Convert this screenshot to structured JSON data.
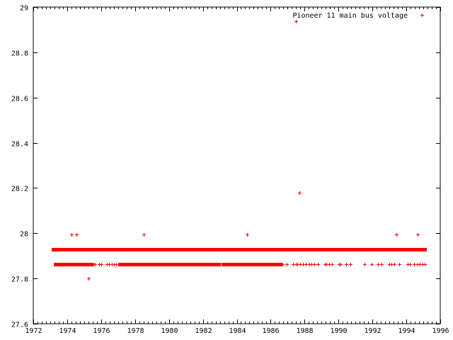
{
  "chart_data": {
    "type": "scatter",
    "title": "",
    "xlabel": "",
    "ylabel": "",
    "xlim": [
      1972,
      1996
    ],
    "ylim": [
      27.6,
      29
    ],
    "xticks": [
      "1972",
      "1974",
      "1976",
      "1978",
      "1980",
      "1982",
      "1984",
      "1986",
      "1988",
      "1990",
      "1992",
      "1994",
      "1996"
    ],
    "yticks": [
      "27.6",
      "27.8",
      "28",
      "28.2",
      "28.4",
      "28.6",
      "28.8",
      "29"
    ],
    "grid": false,
    "legend_position": "top-right",
    "series": [
      {
        "name": "Pioneer 11 main bus voltage",
        "color": "#ff0000",
        "marker": "plus",
        "dense_ranges": [
          {
            "y": 27.929,
            "x": [
              [
                1973.17,
                1980.9
              ],
              [
                1981.0,
                1982.95
              ],
              [
                1983.1,
                1995.12
              ]
            ]
          },
          {
            "y": 27.864,
            "x": [
              [
                1973.3,
                1975.5
              ],
              [
                1977.1,
                1979.75
              ],
              [
                1979.8,
                1980.9
              ],
              [
                1981.0,
                1983.0
              ],
              [
                1983.2,
                1986.6
              ]
            ]
          }
        ],
        "points": [
          {
            "x": 1974.25,
            "y": 27.994
          },
          {
            "x": 1974.55,
            "y": 27.994
          },
          {
            "x": 1978.51,
            "y": 27.994
          },
          {
            "x": 1984.6,
            "y": 27.994
          },
          {
            "x": 1993.41,
            "y": 27.994
          },
          {
            "x": 1994.66,
            "y": 27.994
          },
          {
            "x": 1975.26,
            "y": 27.799
          },
          {
            "x": 1987.69,
            "y": 28.179
          },
          {
            "x": 1987.48,
            "y": 28.937
          },
          {
            "x": 1975.63,
            "y": 27.864
          },
          {
            "x": 1975.88,
            "y": 27.864
          },
          {
            "x": 1976.01,
            "y": 27.864
          },
          {
            "x": 1976.34,
            "y": 27.864
          },
          {
            "x": 1976.47,
            "y": 27.864
          },
          {
            "x": 1976.63,
            "y": 27.864
          },
          {
            "x": 1976.76,
            "y": 27.864
          },
          {
            "x": 1976.88,
            "y": 27.864
          },
          {
            "x": 1977.05,
            "y": 27.864
          },
          {
            "x": 1986.69,
            "y": 27.864
          },
          {
            "x": 1986.94,
            "y": 27.864
          },
          {
            "x": 1987.32,
            "y": 27.864
          },
          {
            "x": 1987.48,
            "y": 27.864
          },
          {
            "x": 1987.57,
            "y": 27.864
          },
          {
            "x": 1987.73,
            "y": 27.864
          },
          {
            "x": 1987.9,
            "y": 27.864
          },
          {
            "x": 1988.07,
            "y": 27.864
          },
          {
            "x": 1988.28,
            "y": 27.864
          },
          {
            "x": 1988.4,
            "y": 27.864
          },
          {
            "x": 1988.57,
            "y": 27.864
          },
          {
            "x": 1988.78,
            "y": 27.864
          },
          {
            "x": 1989.2,
            "y": 27.864
          },
          {
            "x": 1989.28,
            "y": 27.864
          },
          {
            "x": 1989.45,
            "y": 27.864
          },
          {
            "x": 1989.61,
            "y": 27.864
          },
          {
            "x": 1990.03,
            "y": 27.864
          },
          {
            "x": 1990.11,
            "y": 27.864
          },
          {
            "x": 1990.45,
            "y": 27.864
          },
          {
            "x": 1990.7,
            "y": 27.864
          },
          {
            "x": 1991.53,
            "y": 27.864
          },
          {
            "x": 1991.95,
            "y": 27.864
          },
          {
            "x": 1992.33,
            "y": 27.864
          },
          {
            "x": 1992.53,
            "y": 27.864
          },
          {
            "x": 1992.99,
            "y": 27.864
          },
          {
            "x": 1993.12,
            "y": 27.864
          },
          {
            "x": 1993.29,
            "y": 27.864
          },
          {
            "x": 1993.58,
            "y": 27.864
          },
          {
            "x": 1994.08,
            "y": 27.864
          },
          {
            "x": 1994.2,
            "y": 27.864
          },
          {
            "x": 1994.45,
            "y": 27.864
          },
          {
            "x": 1994.66,
            "y": 27.864
          },
          {
            "x": 1994.79,
            "y": 27.864
          },
          {
            "x": 1994.95,
            "y": 27.864
          },
          {
            "x": 1995.08,
            "y": 27.864
          }
        ]
      }
    ]
  }
}
